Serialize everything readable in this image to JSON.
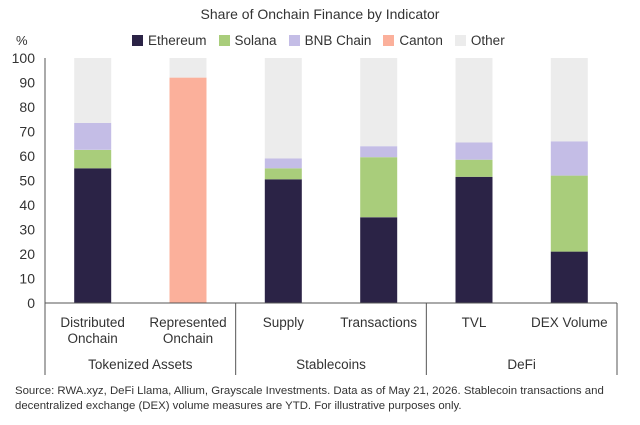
{
  "chart_data": {
    "type": "bar",
    "stacked": true,
    "title": "Share of Onchain Finance by Indicator",
    "ylabel": "%",
    "ylim": [
      0,
      100
    ],
    "yticks": [
      0,
      10,
      20,
      30,
      40,
      50,
      60,
      70,
      80,
      90,
      100
    ],
    "grid": false,
    "legend_position": "top",
    "categories": [
      {
        "label_lines": [
          "Distributed",
          "Onchain"
        ],
        "group": "Tokenized Assets"
      },
      {
        "label_lines": [
          "Represented",
          "Onchain"
        ],
        "group": "Tokenized Assets"
      },
      {
        "label_lines": [
          "Supply"
        ],
        "group": "Stablecoins"
      },
      {
        "label_lines": [
          "Transactions"
        ],
        "group": "Stablecoins"
      },
      {
        "label_lines": [
          "TVL"
        ],
        "group": "DeFi"
      },
      {
        "label_lines": [
          "DEX Volume"
        ],
        "group": "DeFi"
      }
    ],
    "groups": [
      "Tokenized Assets",
      "Stablecoins",
      "DeFi"
    ],
    "series": [
      {
        "name": "Ethereum",
        "color": "#2b2346",
        "values": [
          55,
          0,
          50.5,
          35,
          51.5,
          21
        ]
      },
      {
        "name": "Solana",
        "color": "#a9cd7b",
        "values": [
          7.5,
          0,
          4.5,
          24.5,
          7,
          31
        ]
      },
      {
        "name": "BNB Chain",
        "color": "#c4bde6",
        "values": [
          11,
          0,
          4,
          4.5,
          7,
          14
        ]
      },
      {
        "name": "Canton",
        "color": "#fbb09b",
        "values": [
          0,
          92,
          0,
          0,
          0,
          0
        ]
      },
      {
        "name": "Other",
        "color": "#ececec",
        "values": [
          26.5,
          8,
          41,
          36,
          34.5,
          34
        ]
      }
    ]
  },
  "source_note": "Source: RWA.xyz, DeFi Llama, Allium, Grayscale Investments. Data as of May 21, 2026. Stablecoin transactions and decentralized exchange (DEX) volume measures are YTD. For illustrative purposes only."
}
